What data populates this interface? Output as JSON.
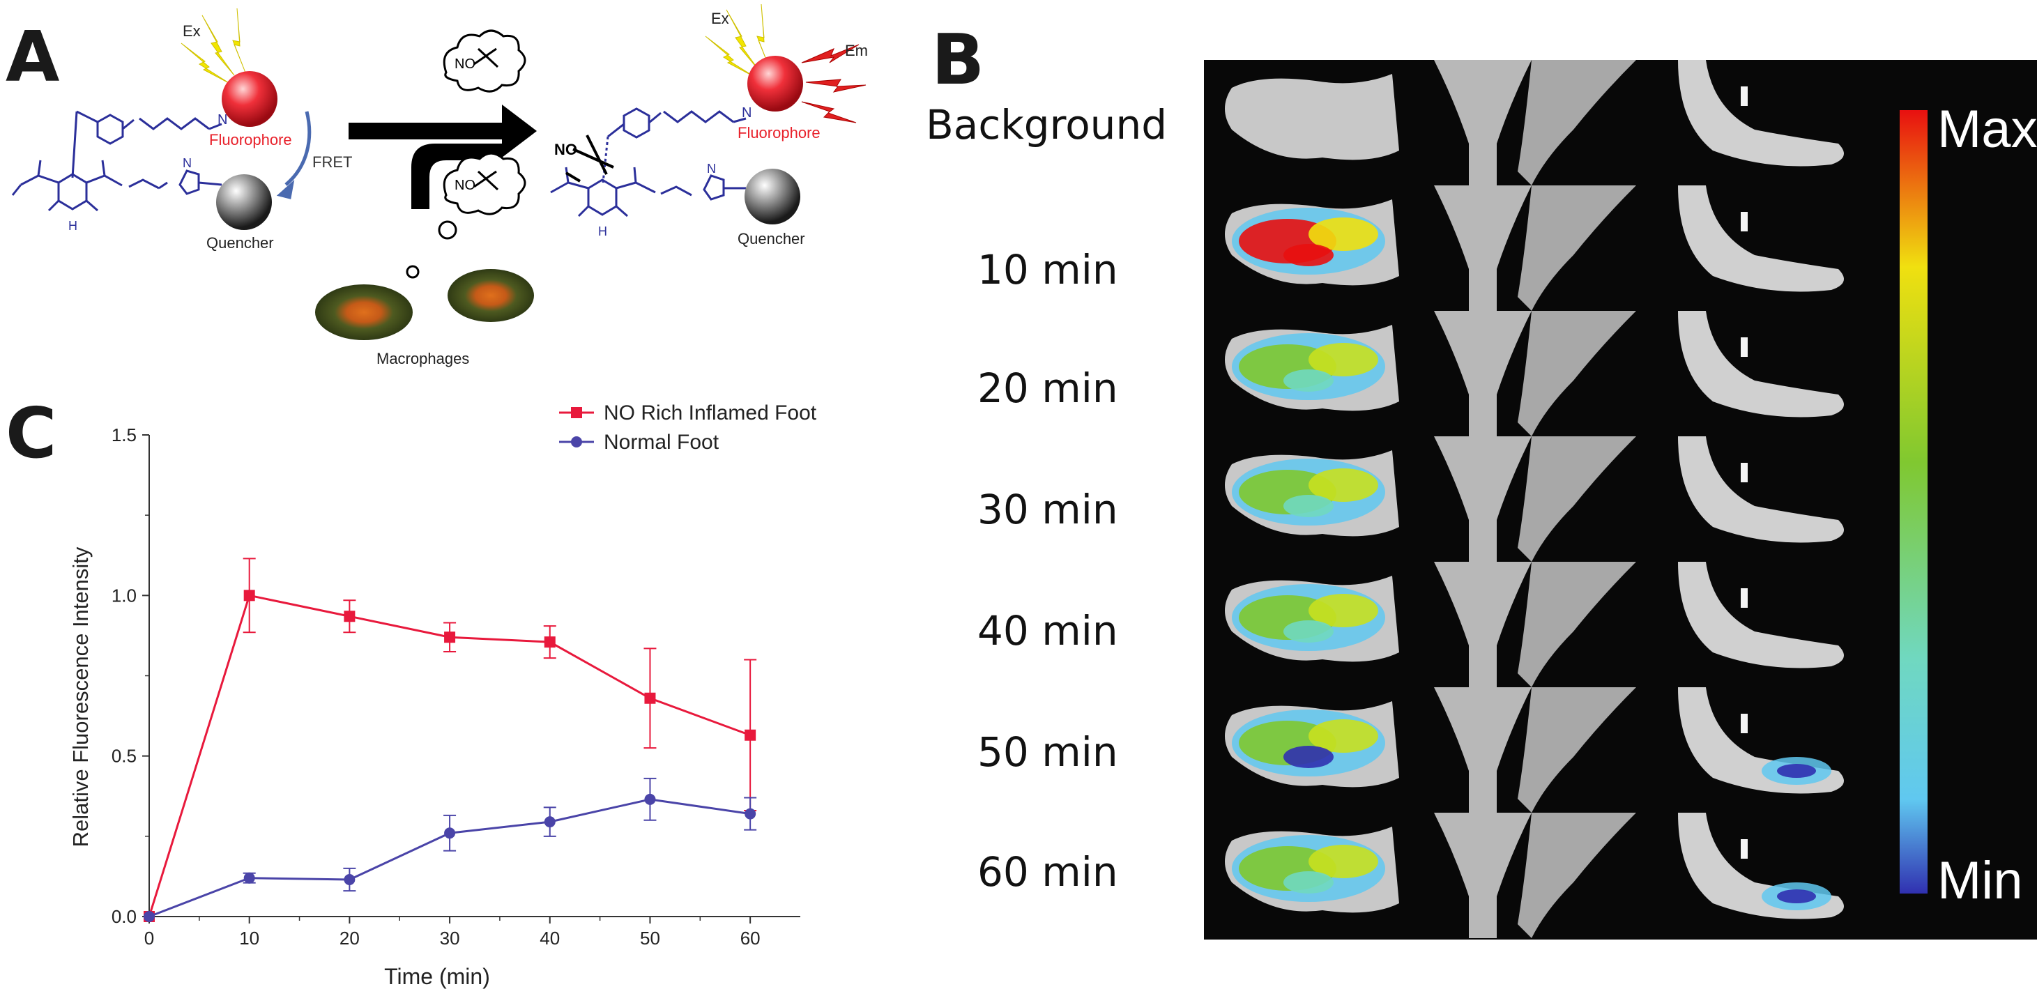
{
  "panels": {
    "a": "A",
    "b": "B",
    "c": "C"
  },
  "scheme": {
    "ex_label": "Ex",
    "em_label": "Em",
    "fluorophore": "Fluorophore",
    "quencher": "Quencher",
    "fret": "FRET",
    "no": "NO",
    "nh": "H",
    "nh2": "N",
    "n": "N",
    "macrophages": "Macrophages",
    "colors": {
      "fluorophore": "#e8202a",
      "structure": "#2b2f9a",
      "excitation": "#f2e600",
      "emission": "#e02020"
    }
  },
  "imaging": {
    "row_labels": [
      "Background",
      "10 min",
      "20 min",
      "30 min",
      "40 min",
      "50 min",
      "60 min"
    ],
    "colorbar": {
      "max": "Max",
      "min": "Min"
    }
  },
  "chart_data": {
    "type": "line",
    "x": [
      0,
      10,
      20,
      30,
      40,
      50,
      60
    ],
    "series": [
      {
        "name": "NO Rich Inflamed Foot",
        "color": "#e8193c",
        "marker": "square",
        "values": [
          0.0,
          1.0,
          0.935,
          0.87,
          0.855,
          0.68,
          0.565
        ],
        "errors": [
          0,
          0.115,
          0.05,
          0.045,
          0.05,
          0.155,
          0.235
        ]
      },
      {
        "name": "Normal Foot",
        "color": "#4a44a8",
        "marker": "circle",
        "values": [
          0.0,
          0.12,
          0.115,
          0.26,
          0.295,
          0.365,
          0.32
        ],
        "errors": [
          0,
          0.015,
          0.035,
          0.055,
          0.045,
          0.065,
          0.05
        ]
      }
    ],
    "xlabel": "Time (min)",
    "ylabel": "Relative Fluorescence Intensity",
    "xlim": [
      0,
      65
    ],
    "ylim": [
      0,
      1.5
    ],
    "xticks": [
      0,
      10,
      20,
      30,
      40,
      50,
      60
    ],
    "yticks": [
      "0.0",
      "0.5",
      "1.0",
      "1.5"
    ],
    "legend_position": "top-right",
    "grid": false
  }
}
